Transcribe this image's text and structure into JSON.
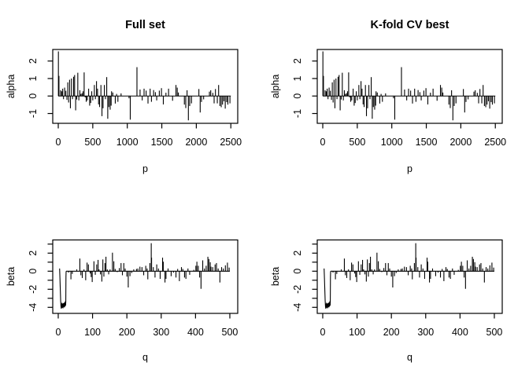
{
  "chart_data": {
    "type": "line",
    "layout": "2x2-panel-grid",
    "background": "#ffffff",
    "foreground": "#000000",
    "panels": [
      {
        "title": "Full set",
        "xlabel": "p",
        "ylabel": "alpha",
        "series": "alpha"
      },
      {
        "title": "K-fold CV best",
        "xlabel": "p",
        "ylabel": "alpha",
        "series": "alpha"
      },
      {
        "title": "",
        "xlabel": "q",
        "ylabel": "beta",
        "series": "beta"
      },
      {
        "title": "",
        "xlabel": "q",
        "ylabel": "beta",
        "series": "beta"
      }
    ],
    "series_defs": {
      "alpha": {
        "style": "zero baseline with vertical coefficient spikes",
        "xlim_box": [
          -80,
          2600
        ],
        "ylim_box": [
          -1.56,
          2.66
        ],
        "baseline": [
          0,
          2500
        ],
        "xticks": [
          0,
          500,
          1000,
          1500,
          2000,
          2500
        ],
        "xtick_labels": [
          "0",
          "500",
          "1000",
          "1500",
          "2000",
          "2500"
        ],
        "yticks": [
          -1,
          0,
          1,
          2
        ],
        "ytick_labels": [
          "-1",
          "0",
          "1",
          "2"
        ],
        "spikes": [
          [
            2,
            2.55
          ],
          [
            10,
            1.15
          ],
          [
            34,
            0.33
          ],
          [
            50,
            0.27
          ],
          [
            64,
            0.42
          ],
          [
            76,
            -0.18
          ],
          [
            92,
            0.48
          ],
          [
            110,
            0.3
          ],
          [
            126,
            -0.22
          ],
          [
            138,
            0.78
          ],
          [
            150,
            -0.37
          ],
          [
            164,
            0.93
          ],
          [
            176,
            -0.7
          ],
          [
            191,
            1.0
          ],
          [
            206,
            -0.18
          ],
          [
            222,
            1.1
          ],
          [
            237,
            1.2
          ],
          [
            252,
            -0.82
          ],
          [
            267,
            -0.2
          ],
          [
            283,
            1.33
          ],
          [
            298,
            -0.25
          ],
          [
            313,
            0.33
          ],
          [
            328,
            0.12
          ],
          [
            344,
            0.16
          ],
          [
            359,
            0.27
          ],
          [
            375,
            1.35
          ],
          [
            390,
            -0.08
          ],
          [
            405,
            -0.33
          ],
          [
            420,
            -0.25
          ],
          [
            440,
            0.42
          ],
          [
            455,
            -0.55
          ],
          [
            470,
            -0.4
          ],
          [
            485,
            0.27
          ],
          [
            500,
            -0.25
          ],
          [
            523,
            0.63
          ],
          [
            538,
            -0.18
          ],
          [
            554,
            0.85
          ],
          [
            569,
            0.42
          ],
          [
            584,
            -0.48
          ],
          [
            599,
            -0.63
          ],
          [
            618,
            0.63
          ],
          [
            633,
            -1.15
          ],
          [
            649,
            -0.7
          ],
          [
            668,
            0.63
          ],
          [
            684,
            -0.18
          ],
          [
            702,
            1.08
          ],
          [
            717,
            -1.3
          ],
          [
            733,
            -0.63
          ],
          [
            752,
            -0.78
          ],
          [
            766,
            -0.55
          ],
          [
            772,
            0.27
          ],
          [
            790,
            0.2
          ],
          [
            826,
            -0.43
          ],
          [
            845,
            0.12
          ],
          [
            864,
            -0.33
          ],
          [
            910,
            0.15
          ],
          [
            1025,
            -0.13
          ],
          [
            1043,
            -1.35
          ],
          [
            1140,
            1.65
          ],
          [
            1185,
            0.37
          ],
          [
            1216,
            -0.25
          ],
          [
            1243,
            0.42
          ],
          [
            1273,
            0.31
          ],
          [
            1300,
            -0.43
          ],
          [
            1331,
            0.42
          ],
          [
            1350,
            -0.33
          ],
          [
            1381,
            0.34
          ],
          [
            1407,
            0.22
          ],
          [
            1426,
            -0.25
          ],
          [
            1464,
            0.31
          ],
          [
            1495,
            0.45
          ],
          [
            1522,
            -0.48
          ],
          [
            1560,
            0.19
          ],
          [
            1598,
            0.42
          ],
          [
            1656,
            -0.27
          ],
          [
            1705,
            0.63
          ],
          [
            1724,
            0.48
          ],
          [
            1740,
            0.2
          ],
          [
            1827,
            -0.49
          ],
          [
            1847,
            -0.69
          ],
          [
            1866,
            0.33
          ],
          [
            1885,
            -1.39
          ],
          [
            1904,
            -0.57
          ],
          [
            1930,
            -0.42
          ],
          [
            2037,
            0.4
          ],
          [
            2056,
            -0.94
          ],
          [
            2075,
            -0.34
          ],
          [
            2106,
            -0.19
          ],
          [
            2190,
            0.25
          ],
          [
            2209,
            0.33
          ],
          [
            2239,
            0.18
          ],
          [
            2258,
            -0.42
          ],
          [
            2277,
            0.4
          ],
          [
            2304,
            -0.42
          ],
          [
            2323,
            0.63
          ],
          [
            2342,
            -0.57
          ],
          [
            2361,
            -0.64
          ],
          [
            2380,
            -0.49
          ],
          [
            2400,
            -0.3
          ],
          [
            2419,
            -0.72
          ],
          [
            2440,
            -0.35
          ],
          [
            2457,
            -0.49
          ],
          [
            2487,
            -0.42
          ]
        ]
      },
      "beta": {
        "style": "zero baseline with vertical coefficient spikes and initial negative excursion",
        "xlim_box": [
          -16,
          523
        ],
        "ylim_box": [
          -4.67,
          3.46
        ],
        "baseline": [
          23,
          500
        ],
        "xticks": [
          0,
          100,
          200,
          300,
          400,
          500
        ],
        "xtick_labels": [
          "0",
          "100",
          "200",
          "300",
          "400",
          "500"
        ],
        "yticks": [
          -4,
          -3,
          -2,
          -1,
          0,
          1,
          2,
          3
        ],
        "ytick_labels": [
          "-4",
          "",
          "-2",
          "",
          "0",
          "",
          "2",
          ""
        ],
        "prefix_line": [
          [
            4,
            0.3
          ],
          [
            5,
            -0.8
          ],
          [
            6,
            -2.0
          ],
          [
            7,
            -3.2
          ],
          [
            8,
            -3.9
          ],
          [
            9,
            -4.15
          ],
          [
            9.5,
            -3.6
          ],
          [
            10,
            -4.0
          ],
          [
            11,
            -3.5
          ],
          [
            12,
            -4.05
          ],
          [
            13,
            -3.6
          ],
          [
            14,
            -4.1
          ],
          [
            15,
            -3.55
          ],
          [
            16,
            -3.95
          ],
          [
            17,
            -3.5
          ],
          [
            18,
            -4.0
          ],
          [
            19,
            -3.45
          ],
          [
            20,
            -3.9
          ],
          [
            21,
            -3.3
          ],
          [
            21.5,
            -3.8
          ],
          [
            22,
            -3.4
          ],
          [
            22.5,
            -0.6
          ],
          [
            23,
            0
          ]
        ],
        "spikes": [
          [
            30,
            -0.15
          ],
          [
            37,
            -0.9
          ],
          [
            41,
            -0.3
          ],
          [
            54,
            0.2
          ],
          [
            63,
            1.4
          ],
          [
            66,
            -0.45
          ],
          [
            70,
            -0.75
          ],
          [
            75,
            0.2
          ],
          [
            80,
            -1.0
          ],
          [
            84,
            0.95
          ],
          [
            88,
            0.75
          ],
          [
            93,
            -0.25
          ],
          [
            96,
            -0.65
          ],
          [
            99,
            -1.2
          ],
          [
            104,
            1.1
          ],
          [
            108,
            -0.4
          ],
          [
            112,
            0.75
          ],
          [
            116,
            1.25
          ],
          [
            119,
            0.2
          ],
          [
            123,
            -0.35
          ],
          [
            127,
            -1.15
          ],
          [
            130,
            1.3
          ],
          [
            133,
            -0.6
          ],
          [
            136,
            0.9
          ],
          [
            139,
            1.6
          ],
          [
            143,
            0.2
          ],
          [
            147,
            -0.35
          ],
          [
            151,
            0.2
          ],
          [
            158,
            2.05
          ],
          [
            162,
            1.1
          ],
          [
            166,
            0.25
          ],
          [
            172,
            -0.1
          ],
          [
            178,
            0.35
          ],
          [
            183,
            0.9
          ],
          [
            187,
            -0.45
          ],
          [
            191,
            0.9
          ],
          [
            195,
            0.3
          ],
          [
            200,
            -0.6
          ],
          [
            204,
            -1.8
          ],
          [
            209,
            -0.55
          ],
          [
            214,
            -0.2
          ],
          [
            220,
            0.2
          ],
          [
            228,
            0.25
          ],
          [
            232,
            0.3
          ],
          [
            238,
            0.5
          ],
          [
            244,
            0.45
          ],
          [
            249,
            -0.45
          ],
          [
            255,
            0.6
          ],
          [
            259,
            0.3
          ],
          [
            261,
            -0.9
          ],
          [
            267,
            0.9
          ],
          [
            271,
            3.1
          ],
          [
            272,
            1.5
          ],
          [
            277,
            0.45
          ],
          [
            282,
            -0.7
          ],
          [
            287,
            0.75
          ],
          [
            292,
            0.3
          ],
          [
            297,
            -0.85
          ],
          [
            304,
            1.5
          ],
          [
            306,
            1.05
          ],
          [
            311,
            -1.25
          ],
          [
            314,
            -0.85
          ],
          [
            320,
            0.3
          ],
          [
            329,
            -0.55
          ],
          [
            336,
            -0.15
          ],
          [
            343,
            -0.7
          ],
          [
            348,
            0.25
          ],
          [
            353,
            -1.1
          ],
          [
            359,
            0.45
          ],
          [
            363,
            0.25
          ],
          [
            368,
            -0.7
          ],
          [
            372,
            -0.85
          ],
          [
            378,
            0.3
          ],
          [
            383,
            -0.4
          ],
          [
            395,
            0.15
          ],
          [
            401,
            0.6
          ],
          [
            404,
            1.05
          ],
          [
            408,
            0.6
          ],
          [
            412,
            -0.7
          ],
          [
            416,
            -1.95
          ],
          [
            421,
            1.2
          ],
          [
            426,
            0.3
          ],
          [
            431,
            0.6
          ],
          [
            436,
            1.6
          ],
          [
            439,
            1.35
          ],
          [
            443,
            1.0
          ],
          [
            445,
            0.5
          ],
          [
            450,
            0.45
          ],
          [
            457,
            0.75
          ],
          [
            461,
            0.9
          ],
          [
            466,
            0.3
          ],
          [
            471,
            -1.25
          ],
          [
            476,
            0.45
          ],
          [
            481,
            0.3
          ],
          [
            487,
            0.65
          ],
          [
            493,
            0.95
          ],
          [
            498,
            0.4
          ]
        ]
      }
    }
  }
}
